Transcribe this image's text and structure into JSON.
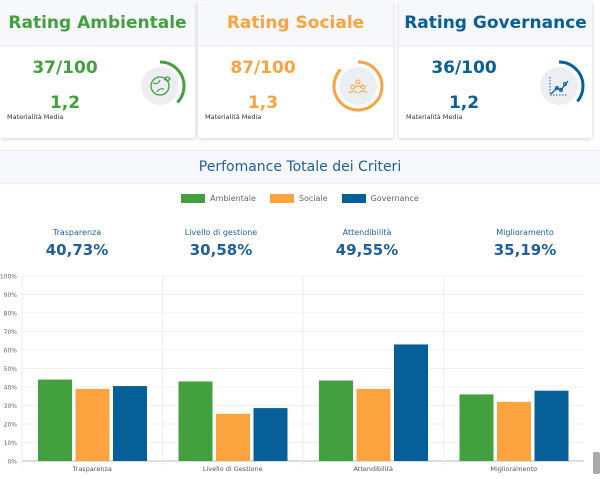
{
  "cards": [
    {
      "title": "Rating Ambientale",
      "score": "37/100",
      "materiality": "1,2",
      "materiality_label": "Materialità Media",
      "color": "#43a03f",
      "icon": "globe-leaf-icon",
      "progress": 0.37
    },
    {
      "title": "Rating Sociale",
      "score": "87/100",
      "materiality": "1,3",
      "materiality_label": "Materialità Media",
      "color": "#fba43f",
      "icon": "people-group-icon",
      "progress": 0.87
    },
    {
      "title": "Rating Governance",
      "score": "36/100",
      "materiality": "1,2",
      "materiality_label": "Materialità Media",
      "color": "#065f99",
      "icon": "line-chart-icon",
      "progress": 0.36
    }
  ],
  "section_title": "Perfomance Totale dei Criteri",
  "kpis": [
    {
      "label": "Trasparenza",
      "value": "40,73%"
    },
    {
      "label": "Livello di gestione",
      "value": "30,58%"
    },
    {
      "label": "Attendibilità",
      "value": "49,55%"
    },
    {
      "label": "Miglioramento",
      "value": "35,19%"
    }
  ],
  "chart_data": {
    "type": "bar",
    "categories": [
      "Trasparenza",
      "Livello di Gestione",
      "Attendibilità",
      "Miglioramento"
    ],
    "series": [
      {
        "name": "Ambientale",
        "color": "#43a03f",
        "values": [
          44,
          43,
          43.5,
          36
        ]
      },
      {
        "name": "Sociale",
        "color": "#fba43f",
        "values": [
          39,
          25.5,
          39,
          32
        ]
      },
      {
        "name": "Governance",
        "color": "#065f99",
        "values": [
          40.5,
          28.6,
          63,
          38
        ]
      }
    ],
    "ylim": [
      0,
      100
    ],
    "yticks": [
      "0%",
      "10%",
      "20%",
      "30%",
      "40%",
      "50%",
      "60%",
      "70%",
      "80%",
      "90%",
      "100%"
    ],
    "grid": true,
    "legend": "top"
  }
}
